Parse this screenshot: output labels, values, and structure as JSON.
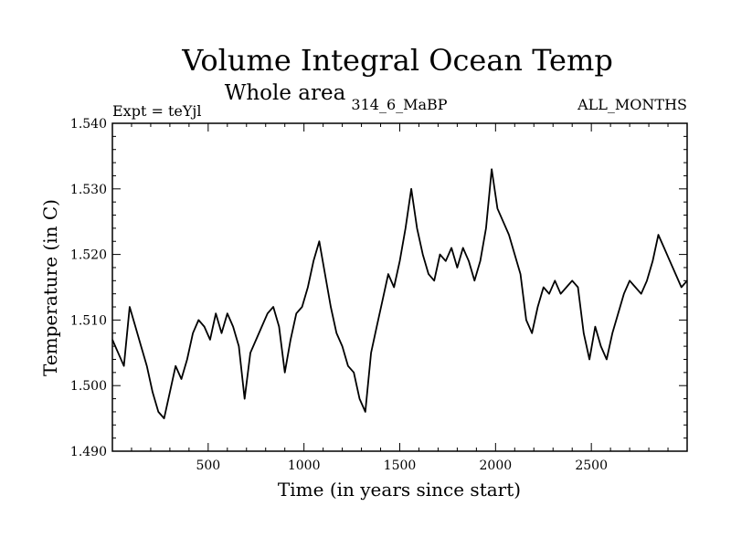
{
  "chart_data": {
    "type": "line",
    "title": "Volume Integral Ocean Temp",
    "subtitle": "Whole area",
    "experiment_label": "Expt = teYjl",
    "run_label": "314_6_MaBP",
    "season_label": "ALL_MONTHS",
    "xlabel": "Time (in years since start)",
    "ylabel": "Temperature (in C)",
    "xlim": [
      0,
      3000
    ],
    "ylim": [
      1.49,
      1.54
    ],
    "x_ticks": [
      500,
      1000,
      1500,
      2000,
      2500
    ],
    "y_ticks": [
      1.49,
      1.5,
      1.51,
      1.52,
      1.53,
      1.54
    ],
    "y_tick_labels": [
      "1.490",
      "1.500",
      "1.510",
      "1.520",
      "1.530",
      "1.540"
    ],
    "grid": false,
    "series": [
      {
        "name": "Volume integral ocean temperature",
        "x": [
          0,
          30,
          60,
          90,
          120,
          150,
          180,
          210,
          240,
          270,
          300,
          330,
          360,
          390,
          420,
          450,
          480,
          510,
          540,
          570,
          600,
          630,
          660,
          690,
          720,
          750,
          780,
          810,
          840,
          870,
          900,
          930,
          960,
          990,
          1020,
          1050,
          1080,
          1110,
          1140,
          1170,
          1200,
          1230,
          1260,
          1290,
          1320,
          1350,
          1380,
          1410,
          1440,
          1470,
          1500,
          1530,
          1560,
          1590,
          1620,
          1650,
          1680,
          1710,
          1740,
          1770,
          1800,
          1830,
          1860,
          1890,
          1920,
          1950,
          1980,
          2010,
          2040,
          2070,
          2100,
          2130,
          2160,
          2190,
          2220,
          2250,
          2280,
          2310,
          2340,
          2370,
          2400,
          2430,
          2460,
          2490,
          2520,
          2550,
          2580,
          2610,
          2640,
          2670,
          2700,
          2730,
          2760,
          2790,
          2820,
          2850,
          2880,
          2910,
          2940,
          2970,
          3000
        ],
        "values": [
          1.507,
          1.505,
          1.503,
          1.512,
          1.509,
          1.506,
          1.503,
          1.499,
          1.496,
          1.495,
          1.499,
          1.503,
          1.501,
          1.504,
          1.508,
          1.51,
          1.509,
          1.507,
          1.511,
          1.508,
          1.511,
          1.509,
          1.506,
          1.498,
          1.505,
          1.507,
          1.509,
          1.511,
          1.512,
          1.509,
          1.502,
          1.507,
          1.511,
          1.512,
          1.515,
          1.519,
          1.522,
          1.517,
          1.512,
          1.508,
          1.506,
          1.503,
          1.502,
          1.498,
          1.496,
          1.505,
          1.509,
          1.513,
          1.517,
          1.515,
          1.519,
          1.524,
          1.53,
          1.524,
          1.52,
          1.517,
          1.516,
          1.52,
          1.519,
          1.521,
          1.518,
          1.521,
          1.519,
          1.516,
          1.519,
          1.524,
          1.533,
          1.527,
          1.525,
          1.523,
          1.52,
          1.517,
          1.51,
          1.508,
          1.512,
          1.515,
          1.514,
          1.516,
          1.514,
          1.515,
          1.516,
          1.515,
          1.508,
          1.504,
          1.509,
          1.506,
          1.504,
          1.508,
          1.511,
          1.514,
          1.516,
          1.515,
          1.514,
          1.516,
          1.519,
          1.523,
          1.521,
          1.519,
          1.517,
          1.515,
          1.516
        ]
      }
    ]
  }
}
